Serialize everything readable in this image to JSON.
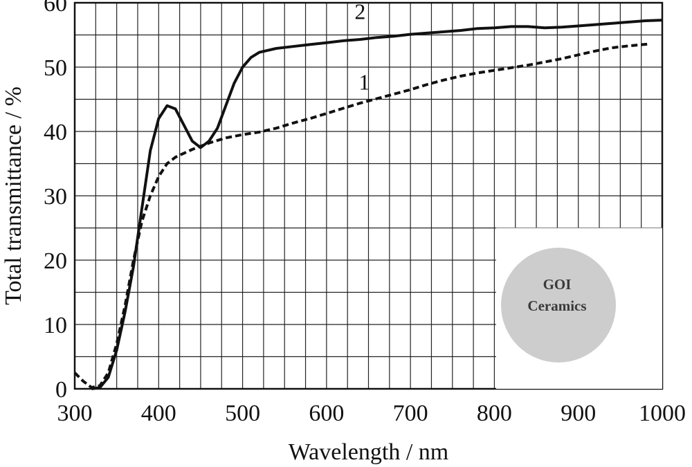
{
  "chart_data": {
    "type": "line",
    "xlabel": "Wavelength / nm",
    "ylabel": "Total transmittance / %",
    "xlim": [
      300,
      1000
    ],
    "ylim": [
      0,
      60
    ],
    "x_ticks": [
      300,
      400,
      500,
      600,
      700,
      800,
      900,
      1000
    ],
    "y_ticks": [
      0,
      10,
      20,
      30,
      40,
      50,
      60
    ],
    "x_minor_step": 25,
    "y_minor_step": 5,
    "grid": true,
    "series": [
      {
        "name": "1",
        "style": "dashed",
        "points": [
          [
            300,
            2.5
          ],
          [
            310,
            1.2
          ],
          [
            320,
            0.2
          ],
          [
            330,
            0.5
          ],
          [
            340,
            2.5
          ],
          [
            350,
            7
          ],
          [
            360,
            13
          ],
          [
            370,
            20
          ],
          [
            380,
            26
          ],
          [
            390,
            30
          ],
          [
            400,
            33
          ],
          [
            410,
            35
          ],
          [
            420,
            36
          ],
          [
            440,
            37.2
          ],
          [
            460,
            38.2
          ],
          [
            480,
            39
          ],
          [
            500,
            39.5
          ],
          [
            520,
            39.9
          ],
          [
            540,
            40.5
          ],
          [
            560,
            41.3
          ],
          [
            580,
            42
          ],
          [
            600,
            42.8
          ],
          [
            620,
            43.6
          ],
          [
            640,
            44.4
          ],
          [
            660,
            45.1
          ],
          [
            680,
            45.8
          ],
          [
            700,
            46.5
          ],
          [
            720,
            47.3
          ],
          [
            740,
            48
          ],
          [
            760,
            48.6
          ],
          [
            780,
            49.1
          ],
          [
            800,
            49.5
          ],
          [
            820,
            49.9
          ],
          [
            840,
            50.3
          ],
          [
            860,
            50.8
          ],
          [
            880,
            51.3
          ],
          [
            900,
            51.9
          ],
          [
            920,
            52.5
          ],
          [
            940,
            53
          ],
          [
            960,
            53.3
          ],
          [
            985,
            53.6
          ]
        ]
      },
      {
        "name": "2",
        "style": "solid",
        "points": [
          [
            320,
            0
          ],
          [
            330,
            0.2
          ],
          [
            340,
            1.8
          ],
          [
            350,
            6
          ],
          [
            360,
            12
          ],
          [
            370,
            19
          ],
          [
            380,
            28
          ],
          [
            390,
            37
          ],
          [
            400,
            42
          ],
          [
            410,
            44
          ],
          [
            420,
            43.5
          ],
          [
            430,
            41
          ],
          [
            440,
            38.5
          ],
          [
            450,
            37.5
          ],
          [
            460,
            38.5
          ],
          [
            470,
            40.5
          ],
          [
            480,
            44
          ],
          [
            490,
            47.5
          ],
          [
            500,
            50
          ],
          [
            510,
            51.5
          ],
          [
            520,
            52.3
          ],
          [
            540,
            52.9
          ],
          [
            560,
            53.2
          ],
          [
            580,
            53.5
          ],
          [
            600,
            53.8
          ],
          [
            620,
            54.1
          ],
          [
            640,
            54.3
          ],
          [
            660,
            54.6
          ],
          [
            680,
            54.8
          ],
          [
            700,
            55.1
          ],
          [
            720,
            55.3
          ],
          [
            740,
            55.5
          ],
          [
            760,
            55.7
          ],
          [
            780,
            56
          ],
          [
            800,
            56.1
          ],
          [
            820,
            56.3
          ],
          [
            840,
            56.3
          ],
          [
            860,
            56.1
          ],
          [
            880,
            56.2
          ],
          [
            900,
            56.4
          ],
          [
            920,
            56.6
          ],
          [
            940,
            56.8
          ],
          [
            960,
            57
          ],
          [
            980,
            57.2
          ],
          [
            1000,
            57.3
          ]
        ]
      }
    ],
    "annotations": [
      {
        "text": "2",
        "x": 640,
        "y": 57.5
      },
      {
        "text": "1",
        "x": 645,
        "y": 46.5
      }
    ],
    "inset": {
      "lines": [
        "GOI",
        "Ceramics"
      ],
      "fill": "#cdcdcd"
    }
  }
}
